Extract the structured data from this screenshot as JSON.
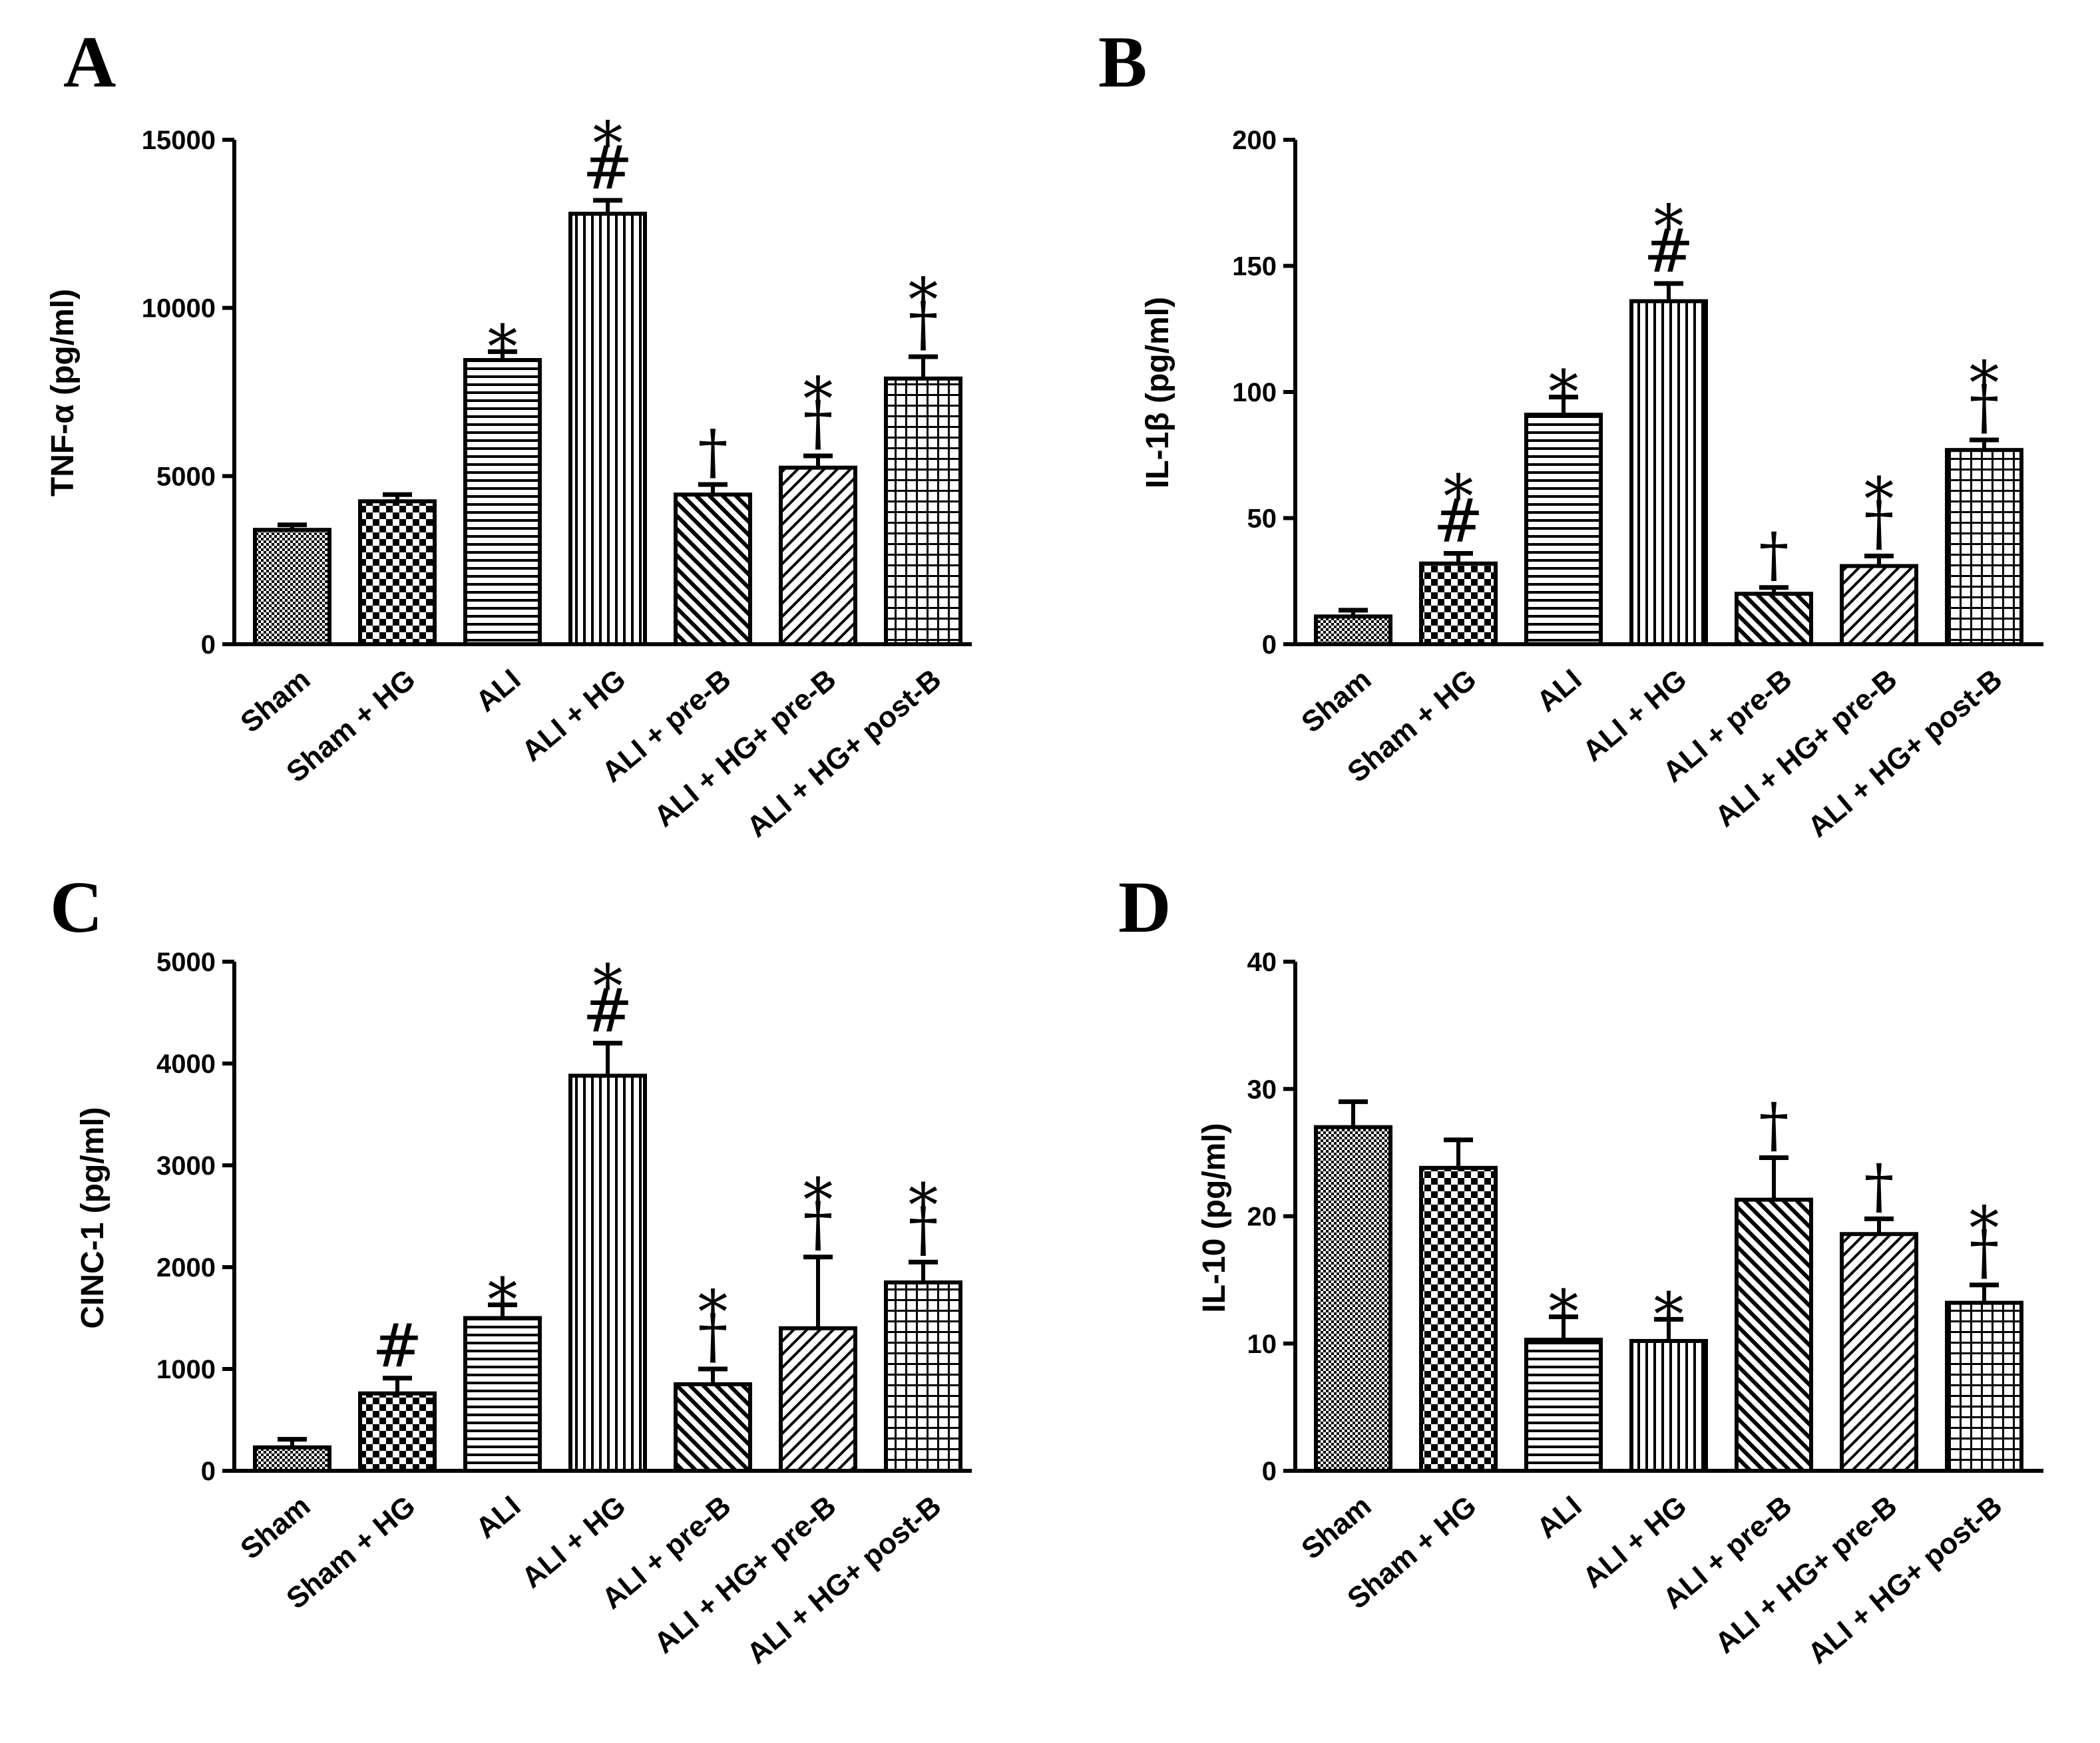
{
  "figure": {
    "background": "#ffffff",
    "ink": "#000000"
  },
  "categories": [
    "Sham",
    "Sham + HG",
    "ALI",
    "ALI + HG",
    "ALI + pre-B",
    "ALI + HG+ pre-B",
    "ALI + HG+ post-B"
  ],
  "patterns": [
    "fine-dots",
    "checker",
    "horizontal-lines",
    "vertical-lines",
    "diag-up-thick",
    "diag-down",
    "grid"
  ],
  "chart_data": [
    {
      "panel": "A",
      "type": "bar",
      "ylabel": "TNF-α (pg/ml)",
      "ylim": [
        0,
        15000
      ],
      "yticks": [
        "0",
        "5000",
        "10000",
        "15000"
      ],
      "values": [
        3400,
        4250,
        8450,
        12800,
        4450,
        5250,
        7900
      ],
      "errors": [
        150,
        200,
        250,
        400,
        300,
        350,
        650
      ],
      "significance": [
        [],
        [],
        [
          "*"
        ],
        [
          "*",
          "#"
        ],
        [
          "†"
        ],
        [
          "*",
          "†"
        ],
        [
          "*",
          "†"
        ]
      ]
    },
    {
      "panel": "B",
      "type": "bar",
      "ylabel": "IL-1β (pg/ml)",
      "ylim": [
        0,
        200
      ],
      "yticks": [
        "0",
        "50",
        "100",
        "150",
        "200"
      ],
      "values": [
        11,
        32,
        91,
        136,
        20,
        31,
        77
      ],
      "errors": [
        2.5,
        4,
        7,
        7,
        2.5,
        4,
        4
      ],
      "significance": [
        [],
        [
          "*",
          "#"
        ],
        [
          "*"
        ],
        [
          "*",
          "#"
        ],
        [
          "†"
        ],
        [
          "*",
          "†"
        ],
        [
          "*",
          "†"
        ]
      ]
    },
    {
      "panel": "C",
      "type": "bar",
      "ylabel": "CINC-1 (pg/ml)",
      "ylim": [
        0,
        5000
      ],
      "yticks": [
        "0",
        "1000",
        "2000",
        "3000",
        "4000",
        "5000"
      ],
      "values": [
        230,
        760,
        1500,
        3880,
        850,
        1400,
        1850
      ],
      "errors": [
        80,
        150,
        130,
        320,
        150,
        700,
        200
      ],
      "significance": [
        [],
        [
          "#"
        ],
        [
          "*"
        ],
        [
          "*",
          "#"
        ],
        [
          "*",
          "†"
        ],
        [
          "*",
          "†"
        ],
        [
          "*",
          "†"
        ]
      ]
    },
    {
      "panel": "D",
      "type": "bar",
      "ylabel": "IL-10 (pg/ml)",
      "ylim": [
        0,
        40
      ],
      "yticks": [
        "0",
        "10",
        "20",
        "30",
        "40"
      ],
      "values": [
        27,
        23.8,
        10.3,
        10.2,
        21.3,
        18.6,
        13.2
      ],
      "errors": [
        2,
        2.2,
        1.8,
        1.7,
        3.3,
        1.2,
        1.4
      ],
      "significance": [
        [],
        [],
        [
          "*"
        ],
        [
          "*"
        ],
        [
          "†"
        ],
        [
          "†"
        ],
        [
          "*",
          "†"
        ]
      ]
    }
  ]
}
